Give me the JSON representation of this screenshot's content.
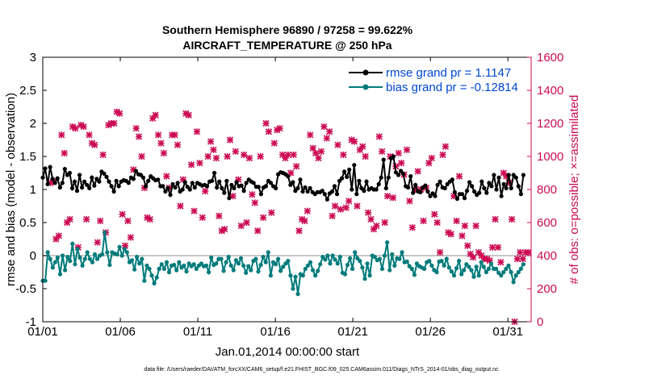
{
  "chart_data": {
    "type": "line",
    "title": "Southern Hemisphere 96890 / 97258 = 99.622%",
    "subtitle": "AIRCRAFT_TEMPERATURE @ 250 hPa",
    "xlabel": "Jan.01,2014 00:00:00 start",
    "ylabel": "rmse and bias (model - observation)",
    "y2label": "# of obs: o=possible; ×=assimilated",
    "footnote": "data file: /Users/raeder/DAI/ATM_forcXX/CAM6_setup/f.e21.FHIST_BGC.f09_025.CAM6assim.011/Diags_NTrS_2014-01/obs_diag_output.nc",
    "xlim": [
      0,
      31.5
    ],
    "ylim": [
      -1,
      3
    ],
    "y2lim": [
      0,
      1600
    ],
    "xticks": [
      {
        "value": 0,
        "label": "01/01"
      },
      {
        "value": 5,
        "label": "01/06"
      },
      {
        "value": 10,
        "label": "01/11"
      },
      {
        "value": 15,
        "label": "01/16"
      },
      {
        "value": 20,
        "label": "01/21"
      },
      {
        "value": 25,
        "label": "01/26"
      },
      {
        "value": 30,
        "label": "01/31"
      }
    ],
    "yticks": [
      {
        "value": -1,
        "label": "-1"
      },
      {
        "value": -0.5,
        "label": "-0.5"
      },
      {
        "value": 0,
        "label": "0"
      },
      {
        "value": 0.5,
        "label": "0.5"
      },
      {
        "value": 1,
        "label": "1"
      },
      {
        "value": 1.5,
        "label": "1.5"
      },
      {
        "value": 2,
        "label": "2"
      },
      {
        "value": 2.5,
        "label": "2.5"
      },
      {
        "value": 3,
        "label": "3"
      }
    ],
    "y2ticks": [
      {
        "value": 0,
        "label": "0"
      },
      {
        "value": 200,
        "label": "200"
      },
      {
        "value": 400,
        "label": "400"
      },
      {
        "value": 600,
        "label": "600"
      },
      {
        "value": 800,
        "label": "800"
      },
      {
        "value": 1000,
        "label": "1000"
      },
      {
        "value": 1200,
        "label": "1200"
      },
      {
        "value": 1400,
        "label": "1400"
      },
      {
        "value": 1600,
        "label": "1600"
      }
    ],
    "legend_position": "top-right",
    "colors": {
      "rmse": "#000000",
      "bias": "#007b7b",
      "obs": "#cc0a52",
      "axis_right": "#cc0a52",
      "zero_line": "#b4b4b4",
      "title": "#000000",
      "legend_text": "#0047d4"
    },
    "series": [
      {
        "name": "rmse grand pr = 1.1147",
        "axis": "left",
        "marker": "dot",
        "values": [
          1.18,
          1.32,
          1.08,
          1.34,
          1.16,
          1.1,
          1.17,
          1.03,
          1.1,
          1.31,
          1.22,
          1.25,
          1.02,
          1.12,
          0.98,
          1.22,
          1.03,
          1.12,
          1.07,
          1.02,
          1.18,
          1.06,
          1.16,
          1.12,
          1.27,
          1.24,
          1.19,
          1.12,
          1.05,
          0.97,
          1.13,
          1.05,
          1.12,
          1.14,
          1.13,
          1.1,
          1.18,
          1.16,
          1.28,
          1.23,
          1.22,
          1.18,
          1.05,
          1.13,
          1.2,
          1.17,
          1.14,
          1.15,
          1.05,
          1.05,
          0.97,
          1.02,
          0.92,
          1.08,
          1.03,
          1.1,
          0.97,
          1.0,
          1.11,
          1.04,
          1.0,
          1.1,
          1.03,
          1.1,
          1.08,
          1.06,
          1.07,
          1.05,
          1.12,
          1.13,
          1.25,
          1.03,
          1.12,
          1.02,
          0.95,
          1.13,
          0.87,
          1.07,
          1.02,
          1.11,
          1.05,
          1.06,
          0.98,
          1.1,
          1.15,
          1.12,
          1.1,
          1.04,
          1.04,
          0.93,
          1.03,
          1.05,
          1.13,
          1.1,
          1.05,
          1.02,
          1.23,
          1.26,
          1.25,
          1.23,
          1.2,
          1.07,
          1.11,
          0.98,
          1.02,
          1.15,
          0.97,
          1.03,
          0.97,
          1.02,
          0.96,
          0.93,
          0.96,
          0.96,
          0.98,
          0.93,
          0.85,
          0.94,
          0.97,
          1.05,
          0.93,
          1.13,
          1.17,
          1.27,
          1.19,
          1.3,
          1.0,
          1.37,
          0.93,
          1.13,
          1.02,
          0.98,
          1.12,
          1.0,
          1.02,
          1.0,
          1.0,
          1.08,
          1.18,
          1.45,
          1.02,
          1.18,
          1.47,
          1.5,
          1.26,
          1.22,
          1.28,
          1.24,
          1.05,
          1.03,
          1.2,
          0.95,
          1.07,
          0.97,
          0.96,
          1.03,
          1.06,
          0.97,
          0.9,
          0.94,
          0.9,
          1.07,
          1.12,
          1.03,
          1.02,
          1.08,
          1.12,
          1.15,
          0.96,
          0.86,
          0.93,
          0.93,
          0.87,
          0.98,
          1.11,
          1.05,
          0.97,
          0.92,
          0.95,
          1.12,
          1.02,
          0.95,
          1.1,
          1.05,
          1.22,
          1.0,
          1.18,
          0.9,
          1.08,
          1.02,
          1.22,
          1.02,
          1.22,
          1.18,
          1.05,
          0.93,
          1.22
        ]
      },
      {
        "name": "bias grand pr = -0.12814",
        "axis": "left",
        "marker": "dot",
        "values": [
          -0.38,
          -0.38,
          0.05,
          -0.05,
          -0.18,
          -0.1,
          -0.03,
          -0.28,
          0.0,
          -0.22,
          -0.02,
          -0.08,
          0.18,
          -0.13,
          0.1,
          -0.03,
          -0.15,
          -0.05,
          0.05,
          -0.05,
          -0.1,
          0.02,
          -0.05,
          0.0,
          0.02,
          0.35,
          0.05,
          -0.14,
          0.05,
          0.03,
          0.02,
          0.13,
          0.0,
          0.1,
          0.05,
          -0.1,
          -0.07,
          -0.21,
          -0.02,
          -0.12,
          -0.05,
          -0.38,
          -0.15,
          -0.2,
          -0.3,
          -0.42,
          -0.33,
          -0.2,
          -0.13,
          -0.2,
          -0.1,
          -0.25,
          -0.15,
          -0.14,
          -0.22,
          -0.1,
          -0.18,
          -0.15,
          -0.24,
          -0.12,
          -0.16,
          -0.13,
          -0.2,
          -0.15,
          -0.12,
          -0.16,
          -0.15,
          -0.25,
          -0.03,
          -0.14,
          -0.12,
          -0.05,
          -0.05,
          -0.23,
          -0.1,
          -0.02,
          -0.15,
          -0.22,
          -0.07,
          -0.12,
          -0.04,
          -0.15,
          -0.26,
          -0.16,
          -0.22,
          -0.08,
          -0.05,
          -0.24,
          -0.14,
          -0.02,
          -0.1,
          0.05,
          -0.3,
          -0.1,
          -0.13,
          -0.05,
          -0.23,
          -0.17,
          -0.12,
          -0.08,
          -0.3,
          -0.5,
          -0.32,
          -0.58,
          -0.28,
          -0.3,
          -0.2,
          -0.15,
          -0.1,
          -0.22,
          -0.3,
          -0.23,
          -0.13,
          -0.02,
          -0.06,
          0.0,
          -0.12,
          0.0,
          -0.06,
          -0.12,
          -0.02,
          -0.26,
          -0.28,
          -0.14,
          -0.04,
          -0.2,
          0.05,
          -0.04,
          -0.08,
          -0.18,
          -0.35,
          -0.12,
          -0.3,
          0.0,
          -0.02,
          -0.07,
          -0.05,
          -0.2,
          0.0,
          0.2,
          -0.22,
          0.02,
          -0.15,
          -0.04,
          -0.05,
          0.05,
          -0.1,
          -0.09,
          -0.16,
          -0.2,
          -0.29,
          -0.12,
          -0.16,
          -0.18,
          -0.2,
          -0.1,
          -0.08,
          -0.15,
          -0.22,
          -0.25,
          -0.09,
          -0.08,
          -0.15,
          -0.05,
          -0.18,
          -0.24,
          -0.3,
          -0.19,
          -0.08,
          -0.28,
          -0.22,
          -0.13,
          -0.17,
          -0.22,
          -0.32,
          -0.17,
          -0.3,
          -0.1,
          -0.17,
          -0.25,
          -0.2,
          -0.12,
          -0.2,
          -0.2,
          -0.26,
          -0.3,
          -0.25,
          -0.2,
          -0.15,
          -0.25,
          -0.4,
          -0.3,
          -0.25,
          -0.2,
          -0.13
        ]
      },
      {
        "name": "# of obs (possible / assimilated)",
        "axis": "right",
        "marker": "star",
        "values": [
          840,
          850,
          500,
          520,
          1130,
          1020,
          600,
          620,
          1180,
          1170,
          450,
          1190,
          1180,
          620,
          1130,
          1080,
          1070,
          480,
          610,
          1010,
          540,
          1190,
          1200,
          1200,
          1270,
          1260,
          650,
          460,
          610,
          510,
          920,
          1170,
          1120,
          1000,
          810,
          630,
          620,
          1230,
          1250,
          1130,
          1080,
          1020,
          880,
          810,
          1130,
          1130,
          1070,
          700,
          860,
          1260,
          1250,
          950,
          670,
          1150,
          960,
          630,
          790,
          1000,
          1090,
          1040,
          990,
          640,
          550,
          560,
          1000,
          1100,
          760,
          1030,
          860,
          580,
          1010,
          600,
          990,
          770,
          720,
          550,
          1000,
          630,
          1200,
          1150,
          660,
          1080,
          1160,
          1170,
          1010,
          990,
          1010,
          900,
          1010,
          940,
          550,
          620,
          610,
          670,
          1130,
          1050,
          1020,
          990,
          1030,
          1180,
          1110,
          1150,
          640,
          700,
          1070,
          680,
          1010,
          690,
          730,
          1100,
          1090,
          700,
          1040,
          1060,
          1000,
          660,
          620,
          560,
          580,
          1120,
          1030,
          600,
          760,
          1000,
          750,
          940,
          1020,
          960,
          890,
          1040,
          730,
          570,
          800,
          910,
          800,
          610,
          810,
          960,
          990,
          650,
          600,
          420,
          1010,
          1060,
          540,
          530,
          760,
          610,
          880,
          520,
          580,
          460,
          410,
          390,
          580,
          420,
          400,
          380,
          380,
          370,
          450,
          620,
          450,
          360,
          900,
          880,
          840,
          620,
          0,
          380,
          420,
          380,
          420,
          420
        ]
      }
    ]
  }
}
